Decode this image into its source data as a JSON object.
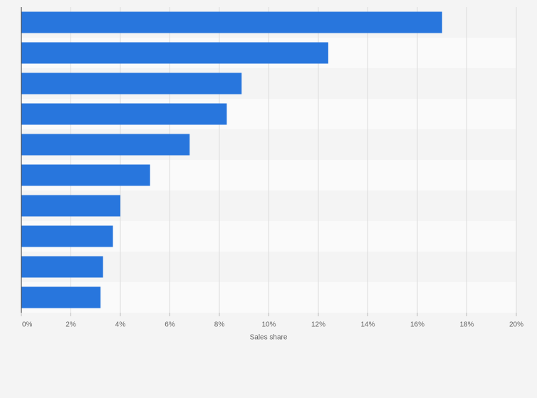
{
  "chart_data": {
    "type": "bar",
    "orientation": "horizontal",
    "categories": [
      null,
      null,
      null,
      null,
      null,
      null,
      null,
      null,
      null,
      null
    ],
    "values": [
      17.0,
      12.4,
      8.9,
      8.3,
      6.8,
      5.2,
      4.0,
      3.7,
      3.3,
      3.2
    ],
    "color": "#2876dd",
    "xlabel": "Sales share",
    "xlim": [
      0,
      20
    ],
    "xticks": [
      {
        "value": 0,
        "label": "0%"
      },
      {
        "value": 2,
        "label": "2%"
      },
      {
        "value": 4,
        "label": "4%"
      },
      {
        "value": 6,
        "label": "6%"
      },
      {
        "value": 8,
        "label": "8%"
      },
      {
        "value": 10,
        "label": "10%"
      },
      {
        "value": 12,
        "label": "12%"
      },
      {
        "value": 14,
        "label": "14%"
      },
      {
        "value": 16,
        "label": "16%"
      },
      {
        "value": 18,
        "label": "18%"
      },
      {
        "value": 20,
        "label": "20%"
      }
    ],
    "grid": true
  }
}
